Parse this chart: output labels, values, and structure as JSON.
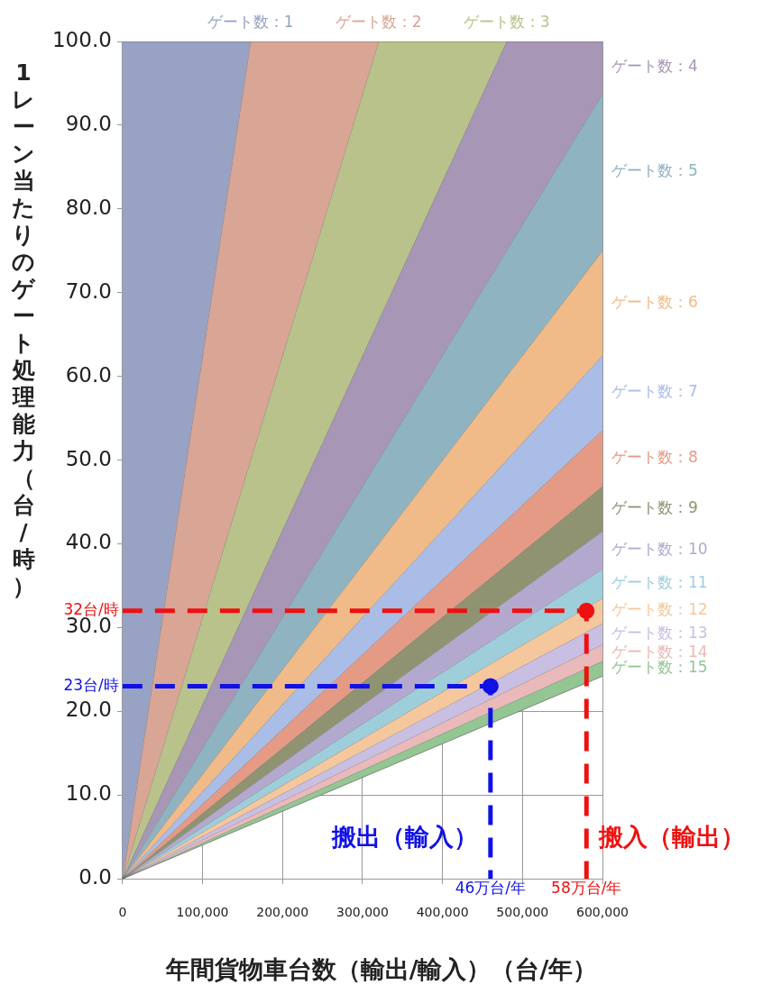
{
  "chart_data": {
    "type": "area",
    "xlabel": "年間貨物車台数（輸出/輸入）（台/年）",
    "ylabel": "1レーン当たりのゲート処理能力（台/時）",
    "xlim": [
      0,
      600000
    ],
    "ylim": [
      0,
      100
    ],
    "xticks": [
      0,
      {
        "value": 100000,
        "label": "100,000"
      },
      {
        "value": 200000,
        "label": "200,000"
      },
      {
        "value": 300000,
        "label": "300,000"
      },
      {
        "value": 400000,
        "label": "400,000"
      },
      {
        "value": 500000,
        "label": "500,000"
      },
      {
        "value": 600000,
        "label": "600,000"
      }
    ],
    "yticks": [
      {
        "value": 0,
        "label": "0.0"
      },
      {
        "value": 10,
        "label": "10.0"
      },
      {
        "value": 20,
        "label": "20.0"
      },
      {
        "value": 30,
        "label": "30.0"
      },
      {
        "value": 40,
        "label": "40.0"
      },
      {
        "value": 50,
        "label": "50.0"
      },
      {
        "value": 60,
        "label": "60.0"
      },
      {
        "value": 70,
        "label": "70.0"
      },
      {
        "value": 80,
        "label": "80.0"
      },
      {
        "value": 90,
        "label": "90.0"
      },
      {
        "value": 100,
        "label": "100.0"
      }
    ],
    "grid": true,
    "legend": false,
    "annotations": [
      {
        "text": "46万台/年",
        "x": 460000,
        "y": 0
      },
      {
        "text": "58万台/年",
        "x": 580000,
        "y": 0
      }
    ],
    "series": [
      {
        "name": "ゲート数：1",
        "color": "#97a2c4",
        "x": [
          0,
          160000
        ],
        "values": [
          100,
          100
        ]
      },
      {
        "name": "ゲート数：2",
        "color": "#d9a595",
        "x": [
          0,
          160000,
          320000
        ],
        "values": [
          0,
          100,
          100
        ]
      },
      {
        "name": "ゲート数：3",
        "color": "#b8c28a",
        "x": [
          0,
          320000,
          480000
        ],
        "values": [
          0,
          100,
          100
        ]
      },
      {
        "name": "ゲート数：4",
        "color": "#a796b6",
        "x": [
          0,
          480000,
          600000
        ],
        "values": [
          0,
          100,
          100
        ]
      },
      {
        "name": "ゲート数：5",
        "color": "#8fb3c0",
        "x": [
          0,
          600000
        ],
        "values": [
          0,
          93.8
        ]
      },
      {
        "name": "ゲート数：6",
        "color": "#f0bb88",
        "x": [
          0,
          600000
        ],
        "values": [
          0,
          75
        ]
      },
      {
        "name": "ゲート数：7",
        "color": "#a9bde6",
        "x": [
          0,
          600000
        ],
        "values": [
          0,
          62.5
        ]
      },
      {
        "name": "ゲート数：8",
        "color": "#e49a85",
        "x": [
          0,
          600000
        ],
        "values": [
          0,
          53.6
        ]
      },
      {
        "name": "ゲート数：9",
        "color": "#8f9371",
        "x": [
          0,
          600000
        ],
        "values": [
          0,
          46.9
        ]
      },
      {
        "name": "ゲート数：10",
        "color": "#b3a9cf",
        "x": [
          0,
          600000
        ],
        "values": [
          0,
          41.5
        ]
      },
      {
        "name": "ゲート数：11",
        "color": "#9fcedb",
        "x": [
          0,
          600000
        ],
        "values": [
          0,
          37
        ]
      },
      {
        "name": "ゲート数：12",
        "color": "#f4c89c",
        "x": [
          0,
          600000
        ],
        "values": [
          0,
          33.5
        ]
      },
      {
        "name": "ゲート数：13",
        "color": "#c9bfe3",
        "x": [
          0,
          600000
        ],
        "values": [
          0,
          30.5
        ]
      },
      {
        "name": "ゲート数：14",
        "color": "#eab9b9",
        "x": [
          0,
          600000
        ],
        "values": [
          0,
          28
        ]
      },
      {
        "name": "ゲート数：15",
        "color": "#93c693",
        "x": [
          0,
          600000
        ],
        "values": [
          0,
          26
        ]
      },
      {
        "type": "line",
        "color": "#6f6f6f",
        "x": [
          0,
          600000
        ],
        "values": [
          0,
          24.2
        ],
        "marker": "none"
      },
      {
        "type": "line",
        "name": "搬出（輸入）",
        "color": "#1010e8",
        "x": [
          0,
          460000,
          460000
        ],
        "values": [
          23,
          23,
          0
        ],
        "value_labels": [
          "23台/時",
          null,
          null
        ],
        "line_style": "dashed",
        "marker": "none"
      },
      {
        "type": "scatter",
        "color": "#1010e8",
        "x": [
          460000
        ],
        "values": [
          23
        ],
        "marker": "circle"
      },
      {
        "type": "line",
        "name": "搬入（輸出）",
        "color": "#ee1111",
        "x": [
          0,
          580000,
          580000
        ],
        "values": [
          32,
          32,
          0
        ],
        "value_labels": [
          "32台/時",
          null,
          null
        ],
        "line_style": "dashed",
        "marker": "none"
      },
      {
        "type": "scatter",
        "color": "#ee1111",
        "x": [
          580000
        ],
        "values": [
          32
        ],
        "marker": "circle"
      }
    ]
  }
}
